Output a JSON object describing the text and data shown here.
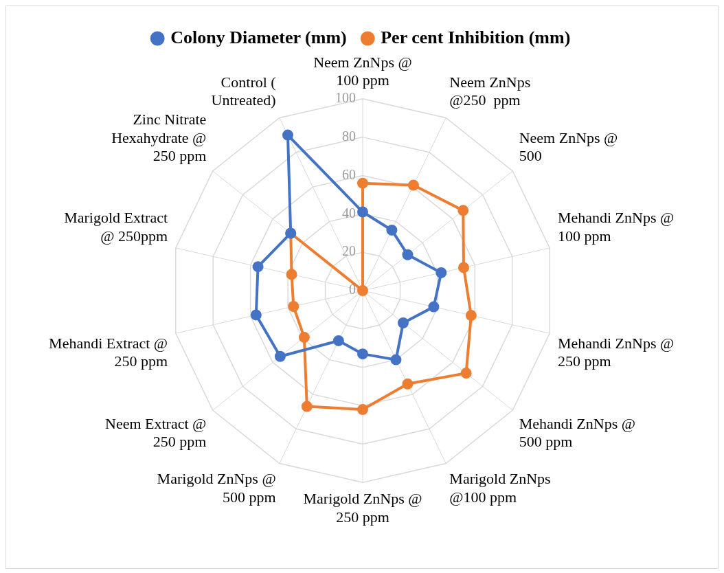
{
  "chart_data": {
    "type": "radar",
    "categories": [
      "Neem ZnNps @ 100 ppm",
      "Neem ZnNps @250  ppm",
      "Neem ZnNps @ 500",
      "Mehandi ZnNps @ 100 ppm",
      "Mehandi ZnNps @ 250 ppm",
      "Mehandi ZnNps @ 500 ppm",
      "Marigold ZnNps @100 ppm",
      "Marigold ZnNps @ 250 ppm",
      "Marigold ZnNps @ 500 ppm",
      "Neem Extract @ 250 ppm",
      "Mehandi Extract @ 250 ppm",
      "Marigold Extract @ 250ppm",
      "Zinc Nitrate Hexahydrate @ 250 ppm",
      "Control ( Untreated)"
    ],
    "series": [
      {
        "name": "Colony Diameter (mm)",
        "color": "#4472c4",
        "values": [
          41,
          35,
          30,
          42,
          38,
          27,
          40,
          33,
          29,
          55,
          57,
          56,
          48,
          90
        ]
      },
      {
        "name": "Per cent Inhibition (mm)",
        "color": "#ed7d31",
        "values": [
          56,
          61,
          67,
          54,
          58,
          69,
          54,
          62,
          67,
          39,
          37,
          38,
          48,
          0
        ]
      }
    ],
    "ylim": [
      0,
      100
    ],
    "yticks": [
      0,
      20,
      40,
      60,
      80,
      100
    ],
    "grid": true,
    "legend": "top",
    "marker": "circle"
  }
}
